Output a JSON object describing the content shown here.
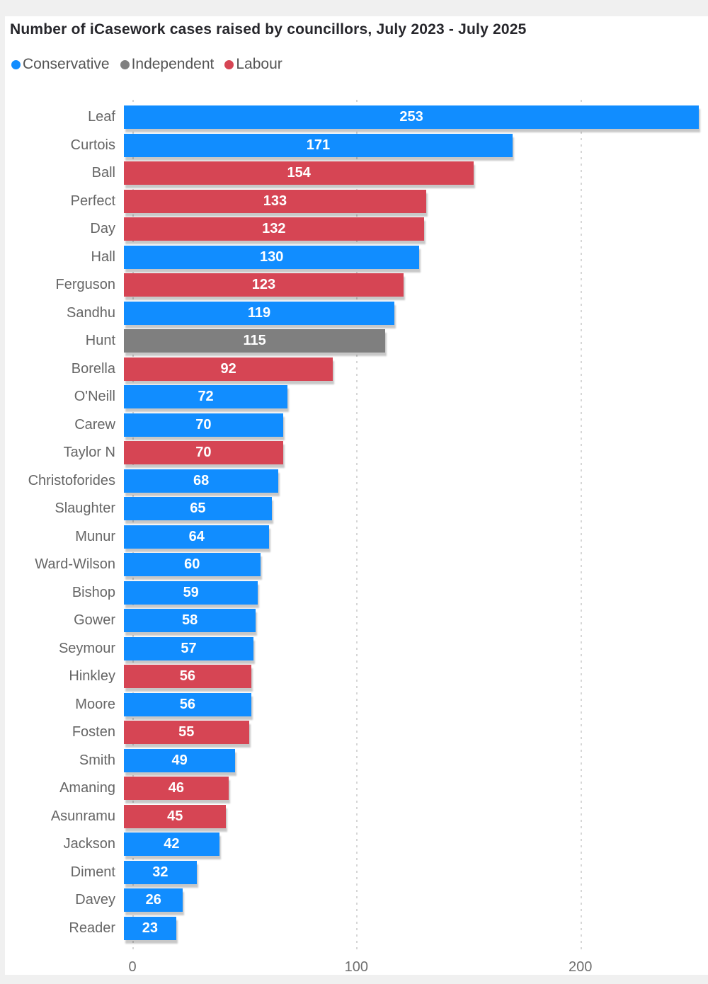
{
  "title": "Number of iCasework cases raised by councillors, July 2023 - July 2025",
  "legend": {
    "items": [
      {
        "label": "Conservative",
        "color": "#118DFF"
      },
      {
        "label": "Independent",
        "color": "#7F7F7F"
      },
      {
        "label": "Labour",
        "color": "#D64554"
      }
    ]
  },
  "chart_data": {
    "type": "bar",
    "orientation": "horizontal",
    "title": "Number of iCasework cases raised by councillors, July 2023 - July 2025",
    "categories": [
      "Leaf",
      "Curtois",
      "Ball",
      "Perfect",
      "Day",
      "Hall",
      "Ferguson",
      "Sandhu",
      "Hunt",
      "Borella",
      "O'Neill",
      "Carew",
      "Taylor N",
      "Christoforides",
      "Slaughter",
      "Munur",
      "Ward-Wilson",
      "Bishop",
      "Gower",
      "Seymour",
      "Hinkley",
      "Moore",
      "Fosten",
      "Smith",
      "Amaning",
      "Asunramu",
      "Jackson",
      "Diment",
      "Davey",
      "Reader"
    ],
    "values": [
      253,
      171,
      154,
      133,
      132,
      130,
      123,
      119,
      115,
      92,
      72,
      70,
      70,
      68,
      65,
      64,
      60,
      59,
      58,
      57,
      56,
      56,
      55,
      49,
      46,
      45,
      42,
      32,
      26,
      23
    ],
    "bar_parties": [
      "Conservative",
      "Conservative",
      "Labour",
      "Labour",
      "Labour",
      "Conservative",
      "Labour",
      "Conservative",
      "Independent",
      "Labour",
      "Conservative",
      "Conservative",
      "Labour",
      "Conservative",
      "Conservative",
      "Conservative",
      "Conservative",
      "Conservative",
      "Conservative",
      "Conservative",
      "Labour",
      "Conservative",
      "Labour",
      "Conservative",
      "Labour",
      "Labour",
      "Conservative",
      "Conservative",
      "Conservative",
      "Conservative"
    ],
    "party_colors": {
      "Conservative": "#118DFF",
      "Independent": "#7F7F7F",
      "Labour": "#D64554"
    },
    "xlabel": "",
    "ylabel": "",
    "xlim": [
      0,
      257
    ],
    "x_ticks": [
      0,
      100,
      200
    ],
    "x_tick_labels": [
      "0",
      "100",
      "200"
    ],
    "grid": "vertical-dotted",
    "legend_position": "top",
    "value_labels": "inside-center"
  },
  "colors": {
    "page_background": "#f0f0f0",
    "card_background": "#ffffff",
    "title_text": "#26262b",
    "category_label_text": "#666666",
    "axis_label_text": "#6f6f6f",
    "value_label_text": "#ffffff",
    "gridline": "#d6d6d6"
  }
}
